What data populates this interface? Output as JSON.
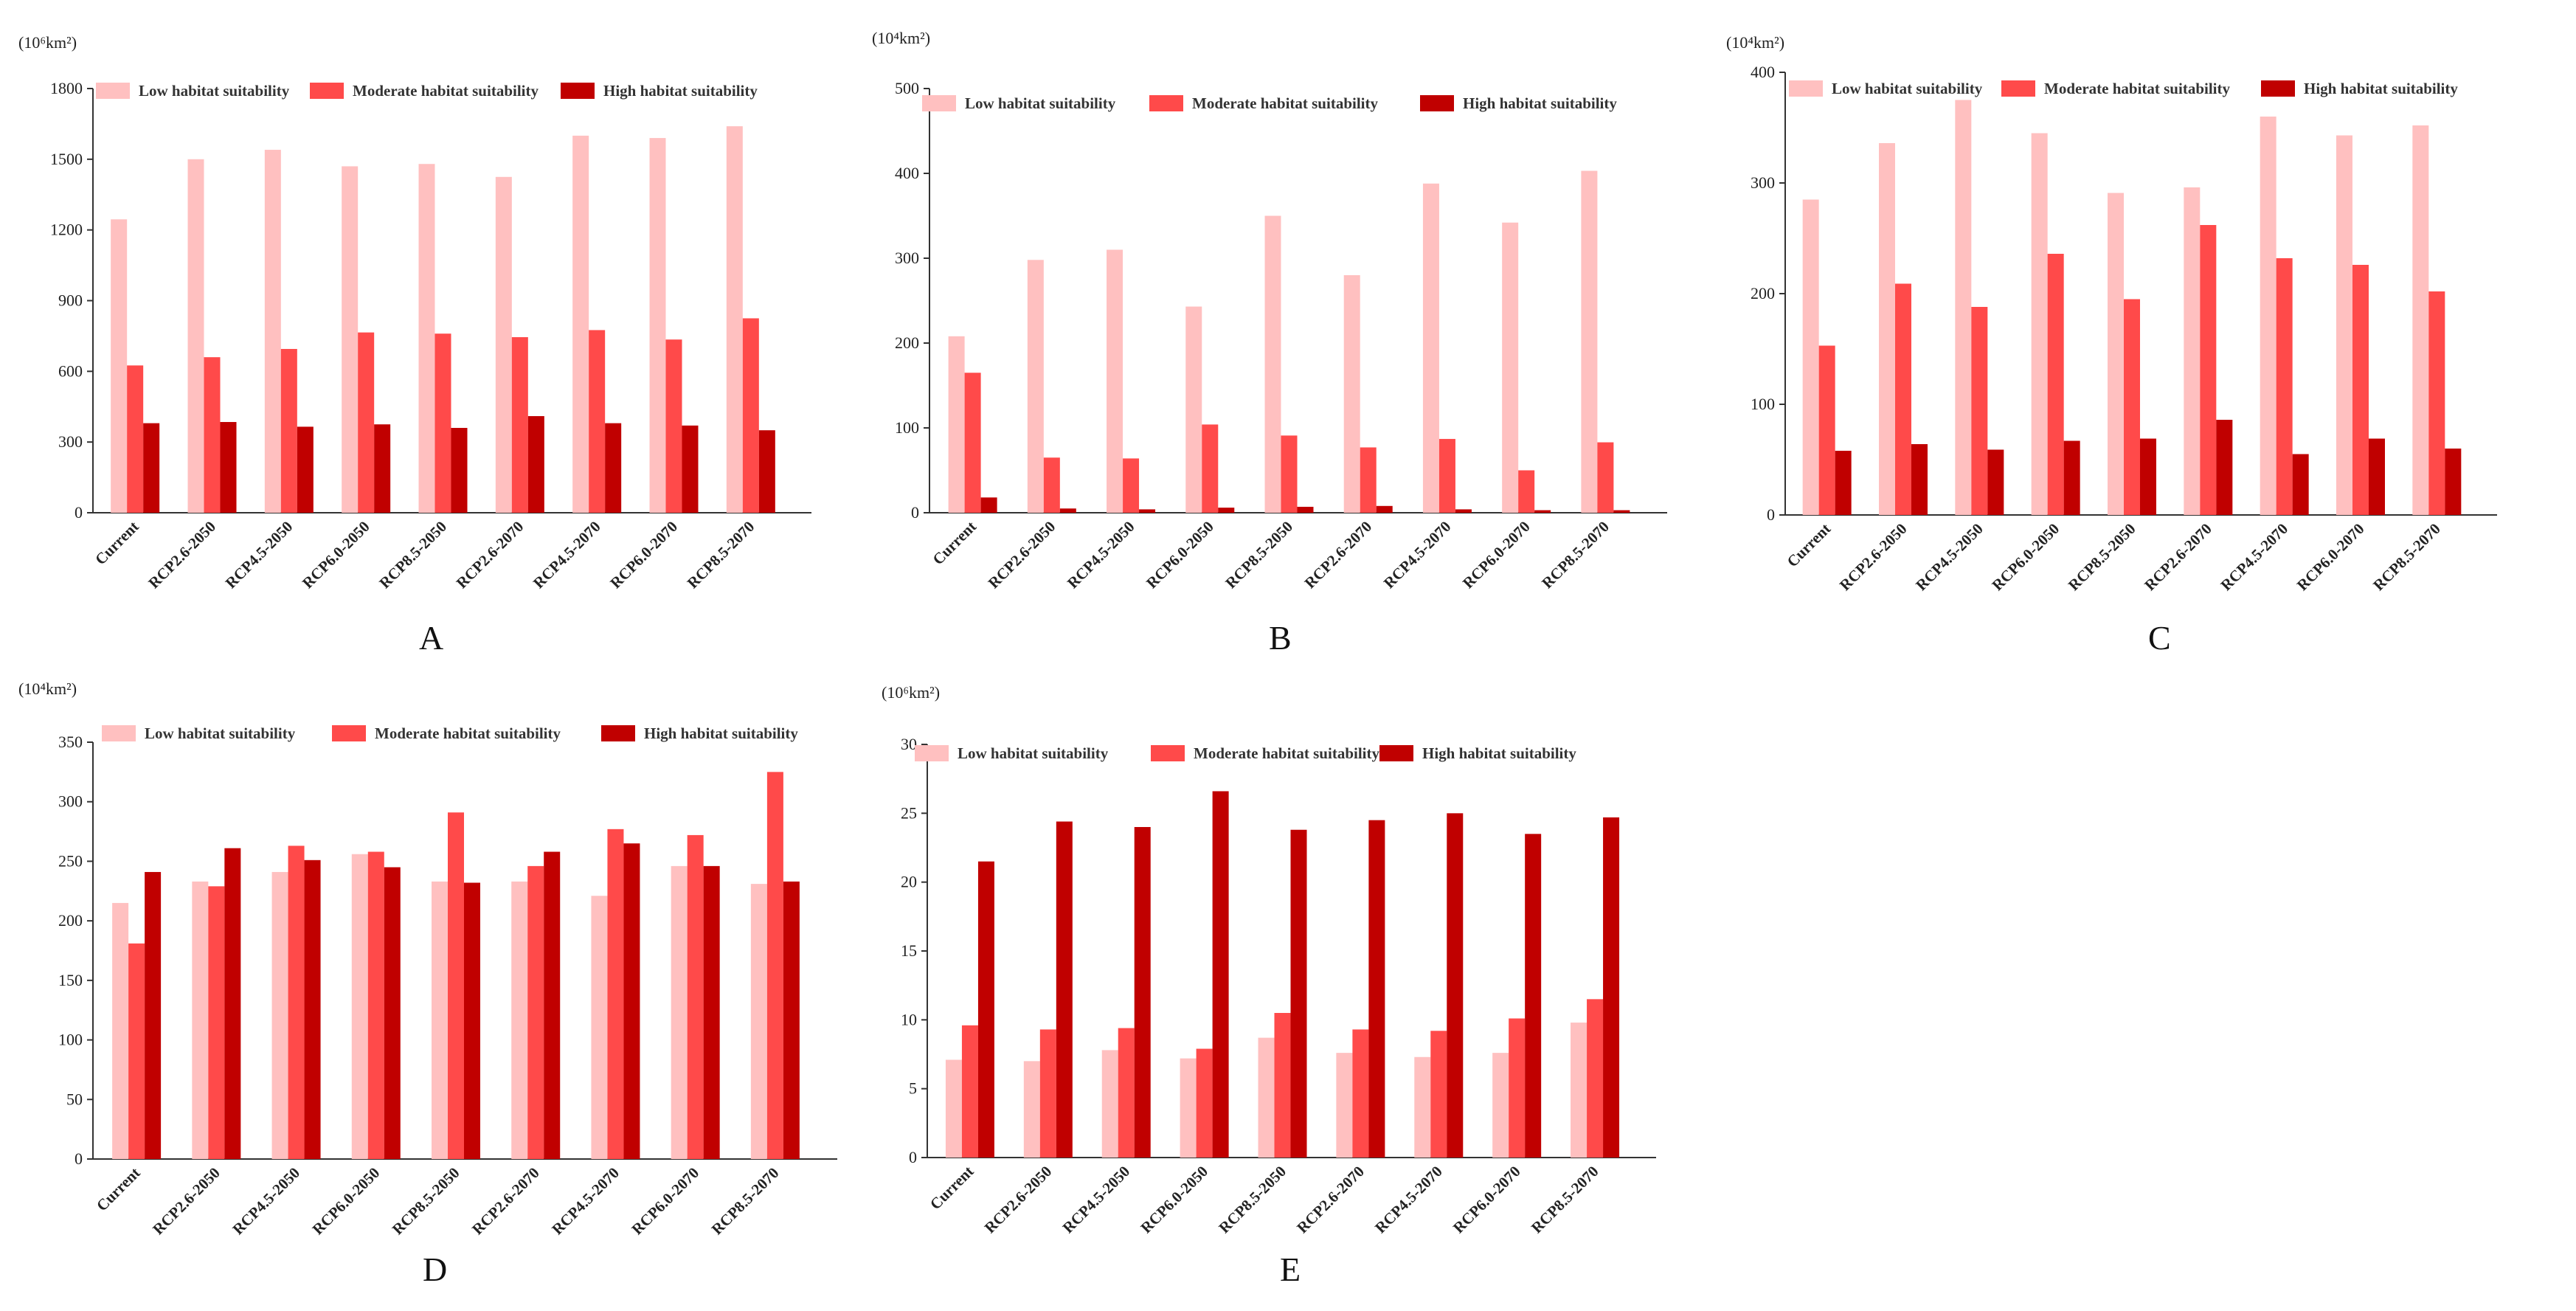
{
  "colors": {
    "low": "#ffc0c0",
    "moderate": "#ff4a4a",
    "high": "#c00000"
  },
  "chart_data": [
    {
      "type": "bar",
      "panel": "A",
      "unit_label": "(10⁶km²)",
      "ylim": [
        0,
        1800
      ],
      "yticks": [
        0,
        300,
        600,
        900,
        1200,
        1500,
        1800
      ],
      "categories": [
        "Current",
        "RCP2.6-2050",
        "RCP4.5-2050",
        "RCP6.0-2050",
        "RCP8.5-2050",
        "RCP2.6-2070",
        "RCP4.5-2070",
        "RCP6.0-2070",
        "RCP8.5-2070"
      ],
      "series": [
        {
          "name": "Low habitat suitability",
          "values": [
            1245,
            1500,
            1540,
            1470,
            1480,
            1425,
            1600,
            1590,
            1640
          ]
        },
        {
          "name": "Moderate habitat suitability",
          "values": [
            625,
            660,
            695,
            765,
            760,
            745,
            775,
            735,
            825
          ]
        },
        {
          "name": "High habitat suitability",
          "values": [
            380,
            385,
            365,
            375,
            360,
            410,
            380,
            370,
            350
          ]
        }
      ],
      "legend": "top"
    },
    {
      "type": "bar",
      "panel": "B",
      "unit_label": "(10⁴km²)",
      "ylim": [
        0,
        500
      ],
      "yticks": [
        0,
        100,
        200,
        300,
        400,
        500
      ],
      "categories": [
        "Current",
        "RCP2.6-2050",
        "RCP4.5-2050",
        "RCP6.0-2050",
        "RCP8.5-2050",
        "RCP2.6-2070",
        "RCP4.5-2070",
        "RCP6.0-2070",
        "RCP8.5-2070"
      ],
      "series": [
        {
          "name": "Low habitat suitability",
          "values": [
            208,
            298,
            310,
            243,
            350,
            280,
            388,
            342,
            403
          ]
        },
        {
          "name": "Moderate habitat suitability",
          "values": [
            165,
            65,
            64,
            104,
            91,
            77,
            87,
            50,
            83
          ]
        },
        {
          "name": "High habitat suitability",
          "values": [
            18,
            5,
            4,
            6,
            7,
            8,
            4,
            3,
            3
          ]
        }
      ],
      "legend": "top"
    },
    {
      "type": "bar",
      "panel": "C",
      "unit_label": "(10⁴km²)",
      "ylim": [
        0,
        400
      ],
      "yticks": [
        0,
        100,
        200,
        300,
        400
      ],
      "categories": [
        "Current",
        "RCP2.6-2050",
        "RCP4.5-2050",
        "RCP6.0-2050",
        "RCP8.5-2050",
        "RCP2.6-2070",
        "RCP4.5-2070",
        "RCP6.0-2070",
        "RCP8.5-2070"
      ],
      "series": [
        {
          "name": "Low habitat suitability",
          "values": [
            285,
            336,
            375,
            345,
            291,
            296,
            360,
            343,
            352
          ]
        },
        {
          "name": "Moderate habitat suitability",
          "values": [
            153,
            209,
            188,
            236,
            195,
            262,
            232,
            226,
            202
          ]
        },
        {
          "name": "High habitat suitability",
          "values": [
            58,
            64,
            59,
            67,
            69,
            86,
            55,
            69,
            60
          ]
        }
      ],
      "legend": "top"
    },
    {
      "type": "bar",
      "panel": "D",
      "unit_label": "(10⁴km²)",
      "ylim": [
        0,
        350
      ],
      "yticks": [
        0,
        50,
        100,
        150,
        200,
        250,
        300,
        350
      ],
      "categories": [
        "Current",
        "RCP2.6-2050",
        "RCP4.5-2050",
        "RCP6.0-2050",
        "RCP8.5-2050",
        "RCP2.6-2070",
        "RCP4.5-2070",
        "RCP6.0-2070",
        "RCP8.5-2070"
      ],
      "series": [
        {
          "name": "Low habitat suitability",
          "values": [
            215,
            233,
            241,
            256,
            233,
            233,
            221,
            246,
            231
          ]
        },
        {
          "name": "Moderate habitat suitability",
          "values": [
            181,
            229,
            263,
            258,
            291,
            246,
            277,
            272,
            325
          ]
        },
        {
          "name": "High habitat suitability",
          "values": [
            241,
            261,
            251,
            245,
            232,
            258,
            265,
            246,
            233
          ]
        }
      ],
      "legend": "top"
    },
    {
      "type": "bar",
      "panel": "E",
      "unit_label": "(10⁶km²)",
      "ylim": [
        0,
        30
      ],
      "yticks": [
        0,
        5,
        10,
        15,
        20,
        25,
        30
      ],
      "categories": [
        "Current",
        "RCP2.6-2050",
        "RCP4.5-2050",
        "RCP6.0-2050",
        "RCP8.5-2050",
        "RCP2.6-2070",
        "RCP4.5-2070",
        "RCP6.0-2070",
        "RCP8.5-2070"
      ],
      "series": [
        {
          "name": "Low habitat suitability",
          "values": [
            7.1,
            7.0,
            7.8,
            7.2,
            8.7,
            7.6,
            7.3,
            7.6,
            9.8
          ]
        },
        {
          "name": "Moderate habitat suitability",
          "values": [
            9.6,
            9.3,
            9.4,
            7.9,
            10.5,
            9.3,
            9.2,
            10.1,
            11.5
          ]
        },
        {
          "name": "High habitat suitability",
          "values": [
            21.5,
            24.4,
            24.0,
            26.6,
            23.8,
            24.5,
            25.0,
            23.5,
            24.7
          ]
        }
      ],
      "legend": "top"
    }
  ]
}
